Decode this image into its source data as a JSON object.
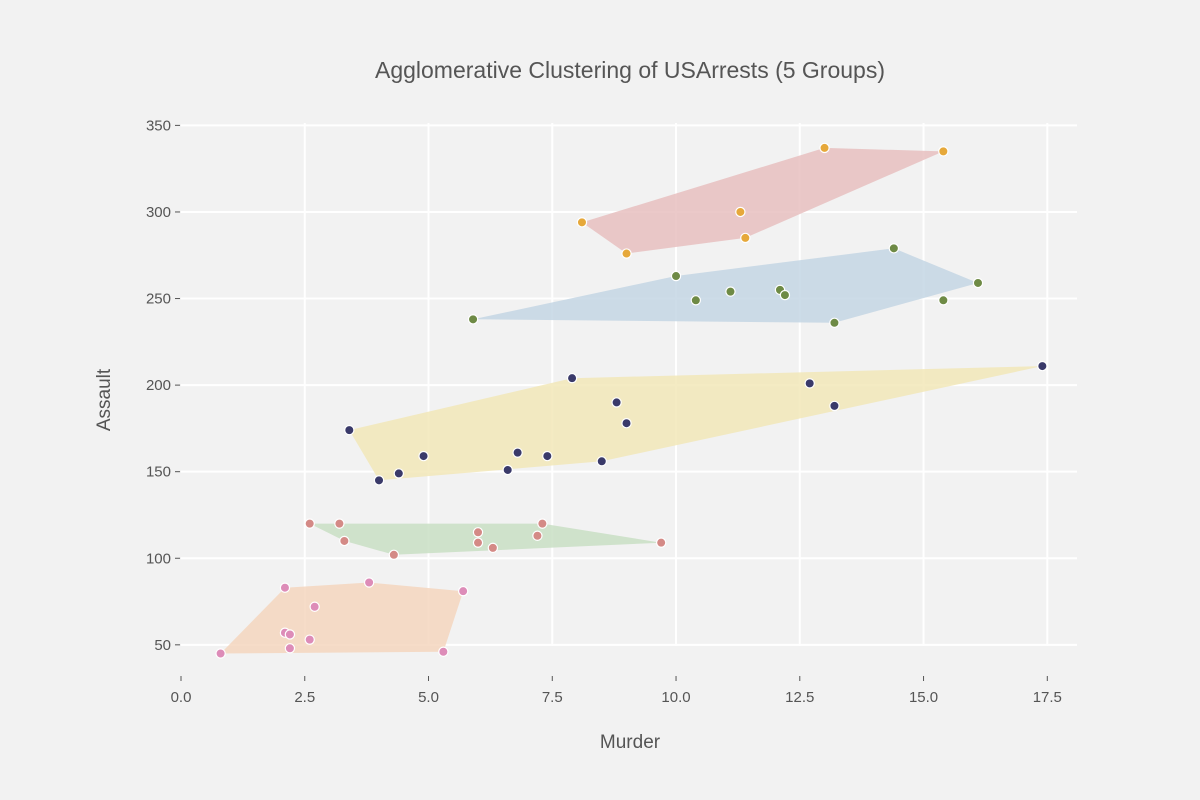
{
  "chart_data": {
    "type": "scatter",
    "title": "Agglomerative Clustering of USArrests (5 Groups)",
    "xlabel": "Murder",
    "ylabel": "Assault",
    "xlim": [
      0,
      18.1
    ],
    "ylim": [
      32,
      356
    ],
    "x_ticks": [
      "0.0",
      "2.5",
      "5.0",
      "7.5",
      "10.0",
      "12.5",
      "15.0",
      "17.5"
    ],
    "y_ticks": [
      "50",
      "100",
      "150",
      "200",
      "250",
      "300",
      "350"
    ],
    "grid": true,
    "legend": "none",
    "series": [
      {
        "hull_color": "#e8c0c0",
        "point_color": "#e6a83a",
        "points": [
          [
            8.1,
            294
          ],
          [
            9.0,
            276
          ],
          [
            11.3,
            300
          ],
          [
            11.4,
            285
          ],
          [
            13.0,
            337
          ],
          [
            15.4,
            335
          ]
        ],
        "hull": [
          [
            8.1,
            294
          ],
          [
            9.0,
            276
          ],
          [
            11.4,
            285
          ],
          [
            15.4,
            335
          ],
          [
            13.0,
            337
          ]
        ]
      },
      {
        "hull_color": "#c4d6e4",
        "point_color": "#6e8a45",
        "points": [
          [
            5.9,
            238
          ],
          [
            10.0,
            263
          ],
          [
            10.4,
            249
          ],
          [
            11.1,
            254
          ],
          [
            12.1,
            255
          ],
          [
            12.2,
            252
          ],
          [
            13.2,
            236
          ],
          [
            14.4,
            279
          ],
          [
            15.4,
            249
          ],
          [
            16.1,
            259
          ]
        ],
        "hull": [
          [
            5.9,
            238
          ],
          [
            13.2,
            236
          ],
          [
            16.1,
            259
          ],
          [
            14.4,
            279
          ],
          [
            10.0,
            263
          ]
        ]
      },
      {
        "hull_color": "#f2e8b8",
        "point_color": "#3a3a6a",
        "points": [
          [
            3.4,
            174
          ],
          [
            4.0,
            145
          ],
          [
            4.4,
            149
          ],
          [
            4.9,
            159
          ],
          [
            6.6,
            151
          ],
          [
            6.8,
            161
          ],
          [
            7.4,
            159
          ],
          [
            7.9,
            204
          ],
          [
            8.5,
            156
          ],
          [
            8.8,
            190
          ],
          [
            9.0,
            178
          ],
          [
            12.7,
            201
          ],
          [
            13.2,
            188
          ],
          [
            17.4,
            211
          ]
        ],
        "hull": [
          [
            3.4,
            174
          ],
          [
            4.0,
            145
          ],
          [
            8.5,
            156
          ],
          [
            17.4,
            211
          ],
          [
            7.9,
            204
          ]
        ]
      },
      {
        "hull_color": "#c9dfc4",
        "point_color": "#d48a86",
        "points": [
          [
            2.6,
            120
          ],
          [
            3.2,
            120
          ],
          [
            3.3,
            110
          ],
          [
            4.3,
            102
          ],
          [
            6.0,
            115
          ],
          [
            6.0,
            109
          ],
          [
            6.3,
            106
          ],
          [
            7.2,
            113
          ],
          [
            7.3,
            120
          ],
          [
            9.7,
            109
          ]
        ],
        "hull": [
          [
            2.6,
            120
          ],
          [
            3.3,
            110
          ],
          [
            4.3,
            102
          ],
          [
            9.7,
            109
          ],
          [
            7.3,
            120
          ]
        ]
      },
      {
        "hull_color": "#f4d6be",
        "point_color": "#dd8cb8",
        "points": [
          [
            0.8,
            45
          ],
          [
            2.1,
            83
          ],
          [
            2.1,
            57
          ],
          [
            2.2,
            48
          ],
          [
            2.2,
            56
          ],
          [
            2.6,
            53
          ],
          [
            2.7,
            72
          ],
          [
            3.8,
            86
          ],
          [
            5.3,
            46
          ],
          [
            5.7,
            81
          ]
        ],
        "hull": [
          [
            0.8,
            45
          ],
          [
            5.3,
            46
          ],
          [
            5.7,
            81
          ],
          [
            3.8,
            86
          ],
          [
            2.1,
            83
          ]
        ]
      }
    ]
  }
}
